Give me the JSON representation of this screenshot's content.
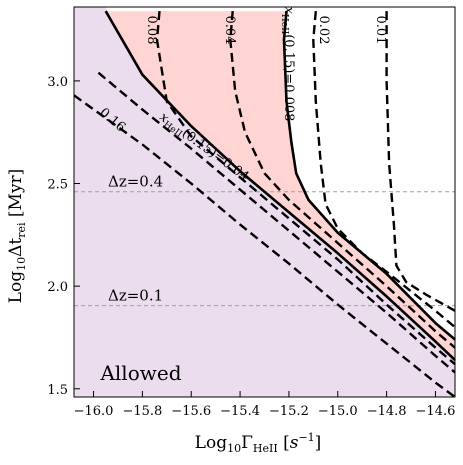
{
  "chart_data": {
    "type": "line",
    "xlabel": "Log₁₀ΓHeII [s⁻¹]",
    "ylabel": "Log₁₀Δt_rei [Myr]",
    "axis_labels": {
      "x_main": "Log",
      "x_sub": "10",
      "x_sym": "Γ",
      "x_symsub": "HeII",
      "x_unit_open": " [",
      "x_unit": "s",
      "x_unit_sup": "−1",
      "x_unit_close": "]",
      "y_main": "Log",
      "y_sub": "10",
      "y_sym": "Δt",
      "y_symsub": "rei",
      "y_unit": " [Myr]"
    },
    "xlim": [
      -16.08,
      -14.52
    ],
    "ylim": [
      1.46,
      3.36
    ],
    "xticks": [
      -16.0,
      -15.8,
      -15.6,
      -15.4,
      -15.2,
      -15.0,
      -14.8,
      -14.6
    ],
    "xtick_labels": [
      "−16.0",
      "−15.8",
      "−15.6",
      "−15.4",
      "−15.2",
      "−15.0",
      "−14.8",
      "−14.6"
    ],
    "yticks": [
      1.5,
      2.0,
      2.5,
      3.0
    ],
    "ytick_labels": [
      "1.5",
      "2.0",
      "2.5",
      "3.0"
    ],
    "grid": false,
    "regions": [
      {
        "name": "Allowed",
        "color": "#ebdcee"
      },
      {
        "name": "",
        "color": "#fed5d3"
      }
    ],
    "horizontal_lines": [
      {
        "y": 2.46,
        "label": "Δz=0.4"
      },
      {
        "y": 1.905,
        "label": "Δz=0.1"
      }
    ],
    "series": [
      {
        "name": "0.16",
        "style": "dashed",
        "x": [
          -15.98,
          -15.8,
          -15.6,
          -15.4,
          -15.2,
          -15.0,
          -14.8,
          -14.6,
          -14.52
        ],
        "y": [
          3.04,
          2.86,
          2.67,
          2.47,
          2.27,
          2.07,
          1.87,
          1.66,
          1.58
        ]
      },
      {
        "name": "",
        "style": "dashed",
        "x": [
          -16.08,
          -15.8,
          -15.6,
          -15.4,
          -15.2,
          -15.0,
          -14.8,
          -14.6,
          -14.52
        ],
        "y": [
          2.93,
          2.69,
          2.5,
          2.3,
          2.11,
          1.91,
          1.72,
          1.53,
          1.46
        ]
      },
      {
        "name": "xHeII(0.15)=0.04",
        "style": "solid",
        "x": [
          -15.95,
          -15.8,
          -15.6,
          -15.4,
          -15.2,
          -15.0,
          -14.8,
          -14.6,
          -14.52
        ],
        "y": [
          3.34,
          3.03,
          2.78,
          2.56,
          2.36,
          2.16,
          1.95,
          1.73,
          1.64
        ]
      },
      {
        "name": "0.08",
        "style": "dashed",
        "x": [
          -15.73,
          -15.74,
          -15.7,
          -15.6,
          -15.4,
          -15.2,
          -15.0,
          -14.8,
          -14.6,
          -14.52
        ],
        "y": [
          3.34,
          3.2,
          2.9,
          2.73,
          2.53,
          2.33,
          2.13,
          1.91,
          1.7,
          1.62
        ]
      },
      {
        "name": "0.04",
        "style": "dashed",
        "x": [
          -15.43,
          -15.44,
          -15.42,
          -15.38,
          -15.3,
          -15.2,
          -15.0,
          -14.8,
          -14.6,
          -14.52
        ],
        "y": [
          3.34,
          3.2,
          2.95,
          2.75,
          2.55,
          2.42,
          2.21,
          2.0,
          1.78,
          1.7
        ]
      },
      {
        "name": "xHeII(0.15)=0.008",
        "style": "solid",
        "x": [
          -15.21,
          -15.22,
          -15.21,
          -15.19,
          -15.17,
          -15.12,
          -15.0,
          -14.8,
          -14.6,
          -14.52
        ],
        "y": [
          3.34,
          3.2,
          2.9,
          2.7,
          2.55,
          2.42,
          2.26,
          2.06,
          1.82,
          1.74
        ]
      },
      {
        "name": "0.02",
        "style": "dashed",
        "x": [
          -15.09,
          -15.1,
          -15.09,
          -15.07,
          -15.05,
          -15.0,
          -14.9,
          -14.8,
          -14.6,
          -14.52
        ],
        "y": [
          3.34,
          3.2,
          2.9,
          2.6,
          2.4,
          2.28,
          2.16,
          2.07,
          1.88,
          1.8
        ]
      },
      {
        "name": "0.01",
        "style": "dashed",
        "x": [
          -14.8,
          -14.8,
          -14.79,
          -14.77,
          -14.76,
          -14.72,
          -14.64,
          -14.58,
          -14.52
        ],
        "y": [
          3.34,
          3.0,
          2.6,
          2.3,
          2.1,
          2.02,
          1.96,
          1.92,
          1.88
        ]
      }
    ],
    "annotations": [
      {
        "text": "Allowed"
      }
    ]
  }
}
